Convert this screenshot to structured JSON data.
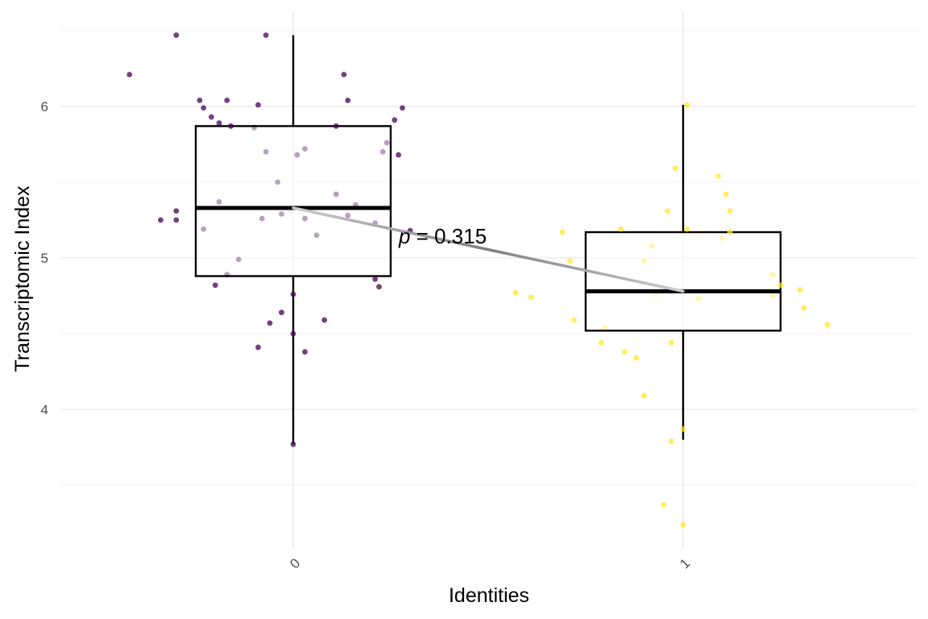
{
  "chart_data": {
    "type": "box",
    "title": "",
    "xlabel": "Identities",
    "ylabel": "Transcriptomic Index",
    "categories": [
      "0",
      "1"
    ],
    "ylim": [
      3.1,
      6.55
    ],
    "yticks": [
      "4",
      "5",
      "6"
    ],
    "grid": true,
    "legend": "none",
    "annotation": {
      "prefix": "p",
      "text": " = 0.315"
    },
    "colors": {
      "group0": "#440154",
      "group1": "#FDE725",
      "box": "#000000",
      "trend_light": "#cccccc",
      "trend_dark": "#808080"
    },
    "boxes": [
      {
        "category": "0",
        "q1": 4.88,
        "median": 5.33,
        "q3": 5.87,
        "whisker_low": 3.77,
        "whisker_high": 6.47
      },
      {
        "category": "1",
        "q1": 4.52,
        "median": 4.78,
        "q3": 5.17,
        "whisker_low": 3.8,
        "whisker_high": 6.01
      }
    ],
    "series": [
      {
        "category": "0",
        "points": [
          [
            -0.3,
            6.47
          ],
          [
            -0.07,
            6.47
          ],
          [
            -0.42,
            6.21
          ],
          [
            0.13,
            6.21
          ],
          [
            -0.24,
            6.04
          ],
          [
            -0.17,
            6.04
          ],
          [
            0.14,
            6.04
          ],
          [
            -0.09,
            6.01
          ],
          [
            -0.23,
            5.99
          ],
          [
            0.28,
            5.99
          ],
          [
            -0.21,
            5.93
          ],
          [
            -0.19,
            5.89
          ],
          [
            -0.16,
            5.87
          ],
          [
            -0.1,
            5.86
          ],
          [
            0.11,
            5.87
          ],
          [
            0.26,
            5.91
          ],
          [
            0.24,
            5.76
          ],
          [
            -0.07,
            5.7
          ],
          [
            0.01,
            5.68
          ],
          [
            0.03,
            5.72
          ],
          [
            0.23,
            5.7
          ],
          [
            0.27,
            5.68
          ],
          [
            -0.04,
            5.5
          ],
          [
            -0.19,
            5.37
          ],
          [
            0.11,
            5.42
          ],
          [
            0.16,
            5.35
          ],
          [
            -0.3,
            5.31
          ],
          [
            -0.03,
            5.29
          ],
          [
            0.14,
            5.28
          ],
          [
            -0.08,
            5.26
          ],
          [
            0.03,
            5.26
          ],
          [
            -0.3,
            5.25
          ],
          [
            0.21,
            5.23
          ],
          [
            -0.34,
            5.25
          ],
          [
            -0.23,
            5.19
          ],
          [
            0.06,
            5.15
          ],
          [
            0.3,
            5.18
          ],
          [
            -0.14,
            4.99
          ],
          [
            -0.17,
            4.89
          ],
          [
            0.21,
            4.86
          ],
          [
            -0.2,
            4.82
          ],
          [
            0.22,
            4.81
          ],
          [
            0.0,
            4.76
          ],
          [
            -0.03,
            4.64
          ],
          [
            0.08,
            4.59
          ],
          [
            -0.06,
            4.57
          ],
          [
            0.0,
            4.5
          ],
          [
            -0.09,
            4.41
          ],
          [
            0.03,
            4.38
          ],
          [
            0.0,
            3.77
          ]
        ]
      },
      {
        "category": "1",
        "points": [
          [
            0.01,
            6.01
          ],
          [
            -0.02,
            5.59
          ],
          [
            0.09,
            5.54
          ],
          [
            0.11,
            5.42
          ],
          [
            -0.04,
            5.31
          ],
          [
            0.12,
            5.31
          ],
          [
            0.01,
            5.19
          ],
          [
            -0.16,
            5.19
          ],
          [
            -0.31,
            5.17
          ],
          [
            0.12,
            5.17
          ],
          [
            0.1,
            5.13
          ],
          [
            -0.08,
            5.08
          ],
          [
            -0.29,
            4.98
          ],
          [
            -0.1,
            4.98
          ],
          [
            0.23,
            4.89
          ],
          [
            0.25,
            4.82
          ],
          [
            -0.43,
            4.77
          ],
          [
            -0.39,
            4.74
          ],
          [
            0.3,
            4.79
          ],
          [
            -0.07,
            4.77
          ],
          [
            0.04,
            4.73
          ],
          [
            0.23,
            4.75
          ],
          [
            0.31,
            4.67
          ],
          [
            -0.28,
            4.59
          ],
          [
            -0.2,
            4.54
          ],
          [
            0.37,
            4.56
          ],
          [
            -0.21,
            4.44
          ],
          [
            -0.03,
            4.44
          ],
          [
            -0.15,
            4.38
          ],
          [
            -0.12,
            4.34
          ],
          [
            -0.1,
            4.09
          ],
          [
            0.0,
            3.87
          ],
          [
            -0.03,
            3.79
          ],
          [
            -0.05,
            3.37
          ],
          [
            0.0,
            3.24
          ]
        ]
      }
    ]
  }
}
